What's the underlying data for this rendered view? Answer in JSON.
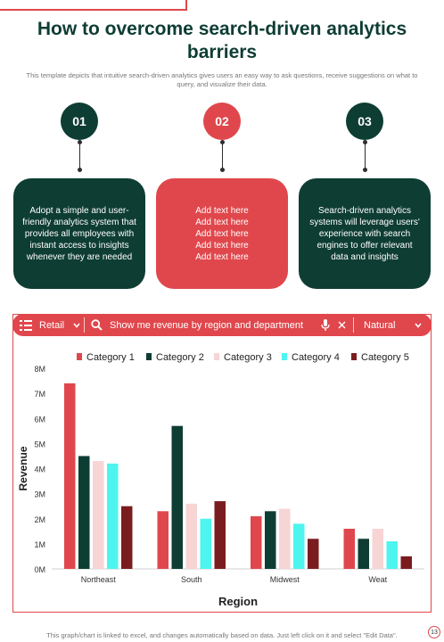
{
  "title": "How to overcome search-driven analytics barriers",
  "subtitle": "This template depicts that intuitive search-driven analytics gives users an easy way to ask questions, receive suggestions on what to query, and visualize their data.",
  "steps": [
    {
      "number": "01",
      "text": "Adopt a simple and user-friendly analytics system that provides all employees with instant access to insights whenever they are needed",
      "color": "#0e3d33"
    },
    {
      "number": "02",
      "text": "Add text here\nAdd text here\nAdd text here\nAdd text here\nAdd text here",
      "color": "#e0474c"
    },
    {
      "number": "03",
      "text": "Search-driven analytics systems will leverage users' experience with search engines to offer relevant data and insights",
      "color": "#0e3d33"
    }
  ],
  "search_bar": {
    "dataset": "Retail",
    "query": "Show me revenue by region and department",
    "mode": "Natural",
    "icons": [
      "table-icon",
      "chevron-down-icon",
      "search-icon",
      "microphone-icon",
      "close-icon",
      "chevron-down-icon"
    ]
  },
  "chart_data": {
    "type": "bar",
    "categories": [
      "Northeast",
      "South",
      "Midwest",
      "Weat"
    ],
    "series": [
      {
        "name": "Category 1",
        "values": [
          7.4,
          2.3,
          2.1,
          1.6
        ],
        "color": "#e0474c"
      },
      {
        "name": "Category 2",
        "values": [
          4.5,
          5.7,
          2.3,
          1.2
        ],
        "color": "#0e3d33"
      },
      {
        "name": "Category 3",
        "values": [
          4.3,
          2.6,
          2.4,
          1.6
        ],
        "color": "#f7d5d5"
      },
      {
        "name": "Category 4",
        "values": [
          4.2,
          2.0,
          1.8,
          1.1
        ],
        "color": "#4df5ee"
      },
      {
        "name": "Category 5",
        "values": [
          2.5,
          2.7,
          1.2,
          0.5
        ],
        "color": "#7a1c1f"
      }
    ],
    "xlabel": "Region",
    "ylabel": "Revenue",
    "ylim": [
      0,
      8
    ],
    "yticks": [
      "0M",
      "1M",
      "2M",
      "3M",
      "4M",
      "5M",
      "6M",
      "7M",
      "8M"
    ],
    "legend": "top"
  },
  "footer": "This graph/chart is linked to excel, and changes automatically based on data. Just left click on it and select \"Edit Data\".",
  "page_number": "13"
}
